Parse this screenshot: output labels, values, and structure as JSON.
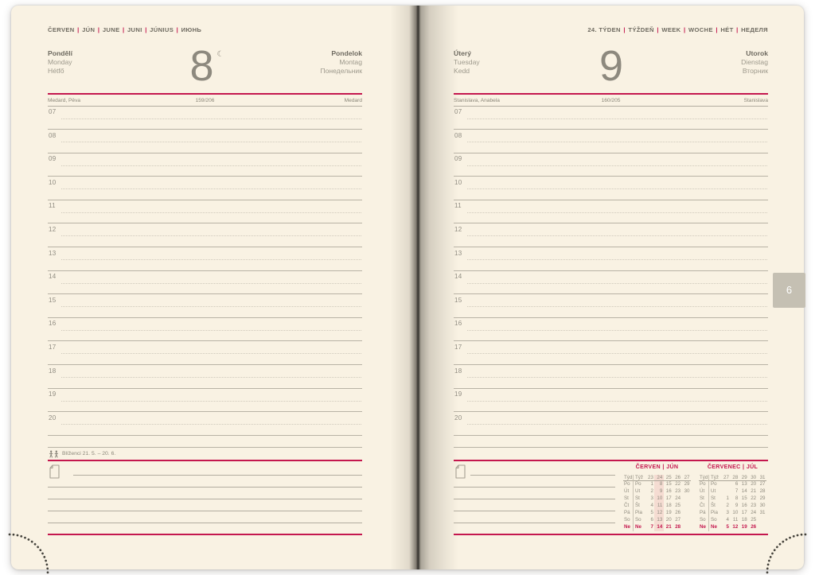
{
  "colors": {
    "accent_red": "#c4174e",
    "paper_cream": "#f9f2e3",
    "rule_gray": "#b2ac9f",
    "text_gray": "#8b8779",
    "text_dark": "#6e6a60",
    "tab_gray": "#c5c0b3",
    "calendar_highlight_pink": "#f5dcd2"
  },
  "icons": {
    "moon_glyph": "☾",
    "zodiac_icon": "gemini-twins",
    "note_icon": "note-page"
  },
  "page_tab": "6",
  "left_page": {
    "month_header": [
      "ČERVEN",
      "JÚN",
      "JUNE",
      "JUNI",
      "JÚNIUS",
      "ИЮНЬ"
    ],
    "day": {
      "number": "8",
      "names_local": [
        "Pondělí",
        "Monday",
        "Hétfő"
      ],
      "names_foreign": [
        "Pondelok",
        "Montag",
        "Понедельник"
      ]
    },
    "name_day_row": {
      "left": "Medard, Pěva",
      "center": "159/206",
      "right": "Medard"
    },
    "hours": [
      "07",
      "08",
      "09",
      "10",
      "11",
      "12",
      "13",
      "14",
      "15",
      "16",
      "17",
      "18",
      "19",
      "20"
    ],
    "zodiac_label": "Blíženci 21. 5. – 20. 6."
  },
  "right_page": {
    "week_header": [
      "24. TÝDEN",
      "TÝŽDEŇ",
      "WEEK",
      "WOCHE",
      "HÉT",
      "НЕДЕЛЯ"
    ],
    "day": {
      "number": "9",
      "names_local": [
        "Úterý",
        "Tuesday",
        "Kedd"
      ],
      "names_foreign": [
        "Utorok",
        "Dienstag",
        "Вторник"
      ]
    },
    "name_day_row": {
      "left": "Stanislava, Anabela",
      "center": "160/205",
      "right": "Stanislava"
    },
    "hours": [
      "07",
      "08",
      "09",
      "10",
      "11",
      "12",
      "13",
      "14",
      "15",
      "16",
      "17",
      "18",
      "19",
      "20"
    ],
    "calendars": [
      {
        "title_parts": [
          "ČERVEN",
          "JÚN"
        ],
        "week_label_cz": "Týd",
        "week_label_sk": "Týž",
        "week_numbers": [
          "23",
          "24",
          "25",
          "26",
          "27"
        ],
        "highlight_col": 1,
        "rows": [
          {
            "cz": "Po",
            "sk": "Po",
            "values": [
              "1",
              "8",
              "15",
              "22",
              "29"
            ]
          },
          {
            "cz": "Út",
            "sk": "Ut",
            "values": [
              "2",
              "9",
              "16",
              "23",
              "30"
            ]
          },
          {
            "cz": "St",
            "sk": "St",
            "values": [
              "3",
              "10",
              "17",
              "24",
              ""
            ]
          },
          {
            "cz": "Čt",
            "sk": "Št",
            "values": [
              "4",
              "11",
              "18",
              "25",
              ""
            ]
          },
          {
            "cz": "Pá",
            "sk": "Pia",
            "values": [
              "5",
              "12",
              "19",
              "26",
              ""
            ]
          },
          {
            "cz": "So",
            "sk": "So",
            "values": [
              "6",
              "13",
              "20",
              "27",
              ""
            ]
          },
          {
            "cz": "Ne",
            "sk": "Ne",
            "values": [
              "7",
              "14",
              "21",
              "28",
              ""
            ]
          }
        ]
      },
      {
        "title_parts": [
          "ČERVENEC",
          "JÚL"
        ],
        "week_label_cz": "Týd",
        "week_label_sk": "Týž",
        "week_numbers": [
          "27",
          "28",
          "29",
          "30",
          "31"
        ],
        "highlight_col": null,
        "rows": [
          {
            "cz": "Po",
            "sk": "Po",
            "values": [
              "",
              "6",
              "13",
              "20",
              "27"
            ]
          },
          {
            "cz": "Út",
            "sk": "Ut",
            "values": [
              "",
              "7",
              "14",
              "21",
              "28"
            ]
          },
          {
            "cz": "St",
            "sk": "St",
            "values": [
              "1",
              "8",
              "15",
              "22",
              "29"
            ]
          },
          {
            "cz": "Čt",
            "sk": "Št",
            "values": [
              "2",
              "9",
              "16",
              "23",
              "30"
            ]
          },
          {
            "cz": "Pá",
            "sk": "Pia",
            "values": [
              "3",
              "10",
              "17",
              "24",
              "31"
            ]
          },
          {
            "cz": "So",
            "sk": "So",
            "values": [
              "4",
              "11",
              "18",
              "25",
              ""
            ]
          },
          {
            "cz": "Ne",
            "sk": "Ne",
            "values": [
              "5",
              "12",
              "19",
              "26",
              ""
            ]
          }
        ]
      }
    ]
  }
}
